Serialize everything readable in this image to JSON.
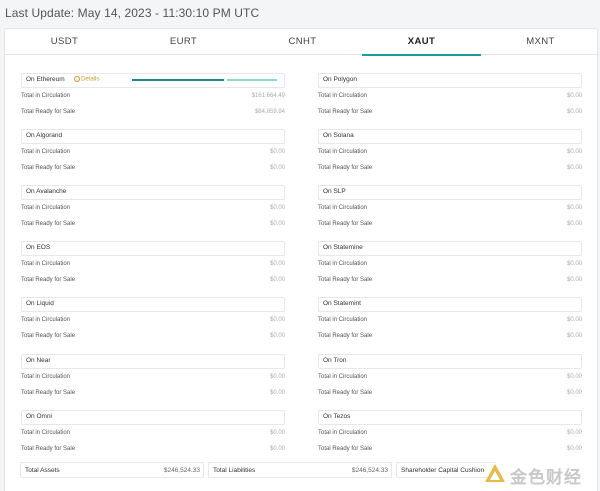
{
  "header": {
    "last_update": "Last Update: May 14, 2023 - 11:30:10 PM UTC"
  },
  "tabs": [
    {
      "label": "USDT",
      "active": false
    },
    {
      "label": "EURT",
      "active": false
    },
    {
      "label": "CNHT",
      "active": false
    },
    {
      "label": "XAUT",
      "active": true
    },
    {
      "label": "MXNT",
      "active": false
    }
  ],
  "row_labels": {
    "circulation": "Total in Circulation",
    "ready": "Total Ready for Sale"
  },
  "details_label": "Details",
  "left_chains": [
    {
      "name": "On Ethereum",
      "circulation": "$161,664.49",
      "ready": "$84,859.84"
    },
    {
      "name": "On Algorand",
      "circulation": "$0.00",
      "ready": "$0.00"
    },
    {
      "name": "On Avalanche",
      "circulation": "$0.00",
      "ready": "$0.00"
    },
    {
      "name": "On EOS",
      "circulation": "$0.00",
      "ready": "$0.00"
    },
    {
      "name": "On Liquid",
      "circulation": "$0.00",
      "ready": "$0.00"
    },
    {
      "name": "On Near",
      "circulation": "$0.00",
      "ready": "$0.00"
    },
    {
      "name": "On Omni",
      "circulation": "$0.00",
      "ready": "$0.00"
    }
  ],
  "right_chains": [
    {
      "name": "On Polygon",
      "circulation": "$0.00",
      "ready": "$0.00"
    },
    {
      "name": "On Solana",
      "circulation": "$0.00",
      "ready": "$0.00"
    },
    {
      "name": "On SLP",
      "circulation": "$0.00",
      "ready": "$0.00"
    },
    {
      "name": "On Statemine",
      "circulation": "$0.00",
      "ready": "$0.00"
    },
    {
      "name": "On Statemint",
      "circulation": "$0.00",
      "ready": "$0.00"
    },
    {
      "name": "On Tron",
      "circulation": "$0.00",
      "ready": "$0.00"
    },
    {
      "name": "On Tezos",
      "circulation": "$0.00",
      "ready": "$0.00"
    }
  ],
  "totals": {
    "assets_label": "Total Assets",
    "assets_value": "$246,524.33",
    "liabilities_label": "Total Liabilities",
    "liabilities_value": "$246,524.33",
    "cushion_label": "Shareholder Capital Cushion"
  },
  "watermark": {
    "text": "金色财经"
  },
  "colors": {
    "accent": "#1a9ba0",
    "details": "#c99a2e"
  }
}
